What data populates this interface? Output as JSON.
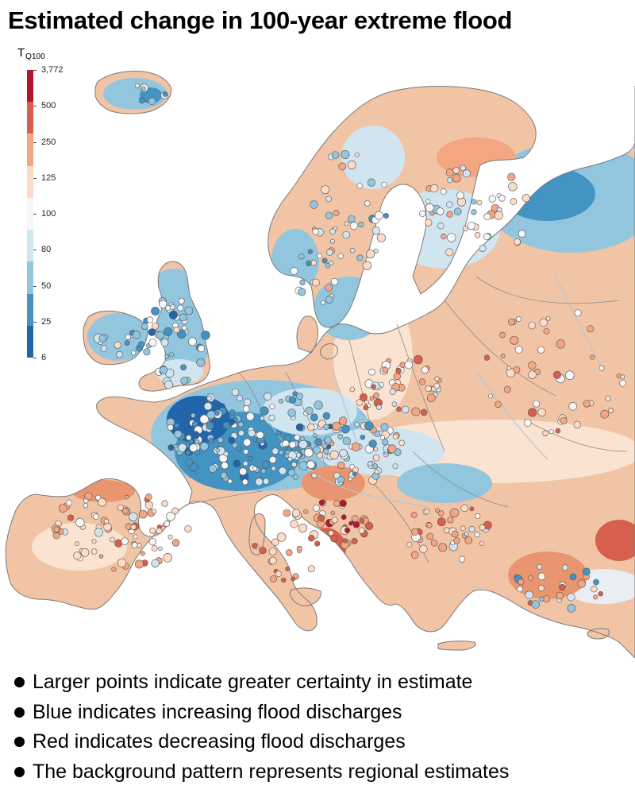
{
  "title": "Estimated change in 100-year extreme flood",
  "legend": {
    "symbol": "T",
    "subscript": "Q100",
    "labels": [
      "3,772",
      "500",
      "250",
      "125",
      "100",
      "80",
      "50",
      "25",
      "6"
    ],
    "colors": [
      "#b2182b",
      "#d6604d",
      "#f4a582",
      "#fddbc7",
      "#f7f7f7",
      "#d1e5f0",
      "#92c5de",
      "#4393c3",
      "#2166ac"
    ]
  },
  "notes": [
    "Larger points indicate greater certainty in estimate",
    "Blue indicates increasing flood discharges",
    "Red indicates decreasing flood discharges",
    "The background pattern represents regional estimates"
  ],
  "map": {
    "land_color": "#f2c4a6",
    "sea_color": "#ffffff",
    "border_color": "#7a7a7a"
  }
}
